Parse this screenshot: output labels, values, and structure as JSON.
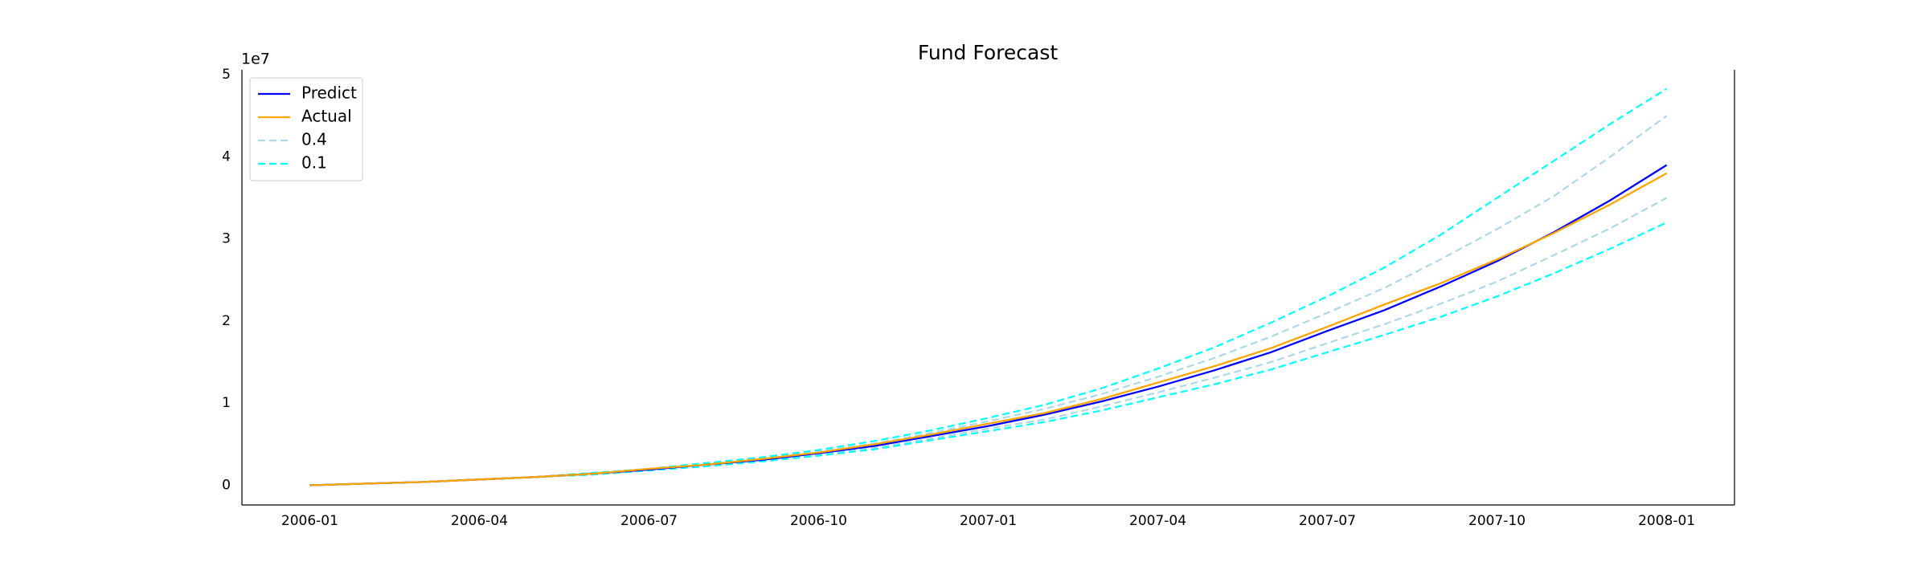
{
  "chart_data": {
    "type": "line",
    "title": "Fund Forecast",
    "y_offset_label": "1e7",
    "x": [
      "2006-01",
      "2006-02",
      "2006-03",
      "2006-04",
      "2006-05",
      "2006-06",
      "2006-07",
      "2006-08",
      "2006-09",
      "2006-10",
      "2006-11",
      "2006-12",
      "2007-01",
      "2007-02",
      "2007-03",
      "2007-04",
      "2007-05",
      "2007-06",
      "2007-07",
      "2007-08",
      "2007-09",
      "2007-10",
      "2007-11",
      "2007-12",
      "2008-01"
    ],
    "xticks": [
      "2006-01",
      "2006-04",
      "2006-07",
      "2006-10",
      "2007-01",
      "2007-04",
      "2007-07",
      "2007-10",
      "2008-01"
    ],
    "ylim": [
      -0.24,
      5.06
    ],
    "yticks": [
      0,
      1,
      2,
      3,
      4,
      5
    ],
    "grid": false,
    "legend": "upper left",
    "series": [
      {
        "name": "Predict",
        "color": "#0000ff",
        "dashed": false,
        "values": [
          0,
          0.02,
          0.04,
          0.07,
          0.1,
          0.14,
          0.19,
          0.25,
          0.31,
          0.39,
          0.48,
          0.6,
          0.72,
          0.86,
          1.02,
          1.2,
          1.4,
          1.62,
          1.88,
          2.13,
          2.42,
          2.73,
          3.08,
          3.47,
          3.9
        ]
      },
      {
        "name": "Actual",
        "color": "#ffa500",
        "dashed": false,
        "values": [
          0,
          0.02,
          0.04,
          0.07,
          0.1,
          0.14,
          0.2,
          0.25,
          0.32,
          0.4,
          0.5,
          0.62,
          0.75,
          0.88,
          1.05,
          1.25,
          1.45,
          1.67,
          1.93,
          2.2,
          2.46,
          2.75,
          3.07,
          3.42,
          3.8
        ]
      }
    ],
    "bands": [
      {
        "name": "0.4",
        "color": "#add8e6",
        "dashed": true,
        "upper": [
          0,
          0.02,
          0.04,
          0.07,
          0.1,
          0.14,
          0.2,
          0.26,
          0.33,
          0.41,
          0.51,
          0.64,
          0.78,
          0.93,
          1.11,
          1.32,
          1.55,
          1.81,
          2.1,
          2.4,
          2.75,
          3.12,
          3.52,
          4.0,
          4.5
        ],
        "lower": [
          0,
          0.02,
          0.04,
          0.07,
          0.1,
          0.13,
          0.18,
          0.24,
          0.3,
          0.37,
          0.46,
          0.57,
          0.69,
          0.8,
          0.96,
          1.13,
          1.31,
          1.5,
          1.73,
          1.96,
          2.21,
          2.48,
          2.8,
          3.13,
          3.5
        ]
      },
      {
        "name": "0.1",
        "color": "#00ffff",
        "dashed": true,
        "upper": [
          0,
          0.02,
          0.04,
          0.07,
          0.1,
          0.15,
          0.2,
          0.27,
          0.34,
          0.43,
          0.54,
          0.67,
          0.82,
          0.98,
          1.18,
          1.42,
          1.68,
          1.98,
          2.3,
          2.65,
          3.05,
          3.5,
          3.95,
          4.4,
          4.83
        ],
        "lower": [
          0,
          0.02,
          0.04,
          0.07,
          0.1,
          0.13,
          0.18,
          0.23,
          0.29,
          0.36,
          0.44,
          0.55,
          0.66,
          0.77,
          0.91,
          1.07,
          1.23,
          1.41,
          1.62,
          1.83,
          2.05,
          2.3,
          2.58,
          2.88,
          3.2
        ]
      }
    ]
  }
}
